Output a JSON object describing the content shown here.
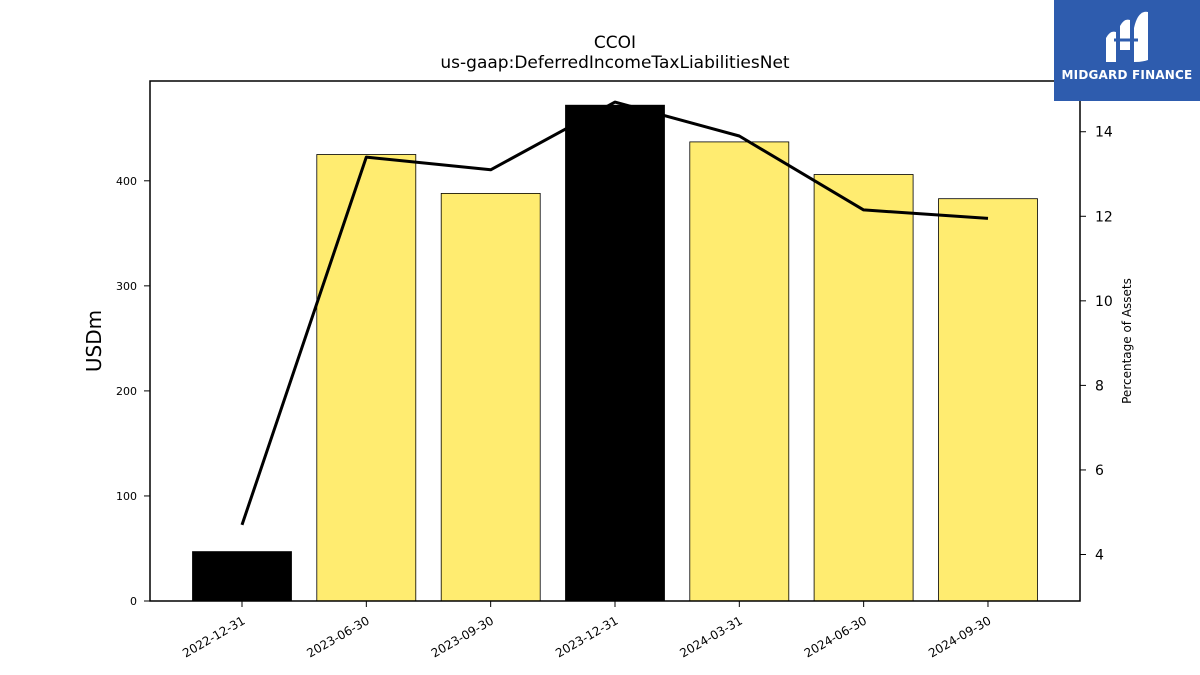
{
  "chart_data": {
    "type": "bar",
    "title": "CCOI",
    "subtitle": "us-gaap:DeferredIncomeTaxLiabilitiesNet",
    "ylabel": "USDm",
    "y2label": "Percentage of Assets",
    "categories": [
      "2022-12-31",
      "2023-06-30",
      "2023-09-30",
      "2023-12-31",
      "2024-03-31",
      "2024-06-30",
      "2024-09-30"
    ],
    "series": [
      {
        "type": "bar",
        "values": [
          47,
          425,
          388,
          472,
          437,
          406,
          383
        ],
        "colors": [
          "#000000",
          "#ffec70",
          "#ffec70",
          "#000000",
          "#ffec70",
          "#ffec70",
          "#ffec70"
        ]
      },
      {
        "type": "line",
        "axis": "right",
        "values": [
          4.7,
          13.4,
          13.1,
          14.7,
          13.9,
          12.15,
          11.95
        ],
        "color": "#000000"
      }
    ],
    "ylim": [
      0,
      495
    ],
    "y2lim": [
      2.9,
      15.2
    ],
    "yticks": [
      0,
      100,
      200,
      300,
      400
    ],
    "y2ticks": [
      4,
      6,
      8,
      10,
      12,
      14
    ],
    "grid": false
  },
  "logo": {
    "text": "MIDGARD FINANCE",
    "bg": "#2e5cae"
  }
}
